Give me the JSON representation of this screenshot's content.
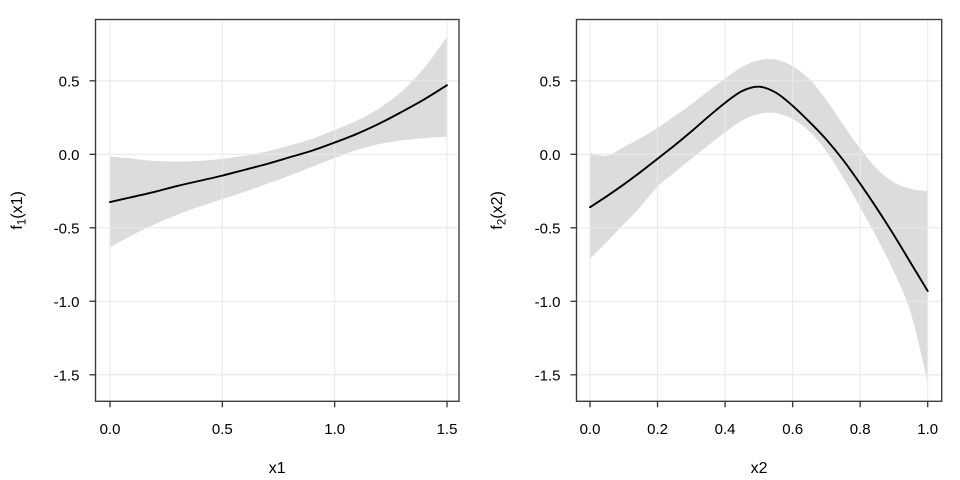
{
  "page": {
    "background": "#ffffff"
  },
  "chart_data": [
    {
      "type": "line",
      "panel": "left",
      "title": "",
      "xlabel": "x1",
      "ylabel": {
        "base": "f",
        "sub": "1",
        "args": "(x1)"
      },
      "xticks": [
        0.0,
        0.5,
        1.0,
        1.5
      ],
      "xtick_labels": [
        "0.0",
        "0.5",
        "1.0",
        "1.5"
      ],
      "yticks": [
        0.5,
        0.0,
        -0.5,
        -1.0,
        -1.5
      ],
      "ytick_labels": [
        "0.5",
        "0.0",
        "-0.5",
        "-1.0",
        "-1.5"
      ],
      "xlim": [
        -0.07,
        1.55
      ],
      "ylim": [
        -1.68,
        0.92
      ],
      "grid": true,
      "legend_position": "none",
      "series": [
        {
          "name": "smooth-estimate",
          "x": [
            0.0,
            0.1,
            0.2,
            0.3,
            0.4,
            0.5,
            0.6,
            0.7,
            0.8,
            0.9,
            1.0,
            1.1,
            1.2,
            1.3,
            1.4,
            1.5
          ],
          "y": [
            -0.325,
            -0.29,
            -0.255,
            -0.215,
            -0.18,
            -0.145,
            -0.105,
            -0.065,
            -0.02,
            0.025,
            0.08,
            0.14,
            0.21,
            0.29,
            0.375,
            0.47
          ]
        }
      ],
      "band": {
        "name": "confidence-interval",
        "x": [
          0.0,
          0.1,
          0.2,
          0.3,
          0.4,
          0.5,
          0.6,
          0.7,
          0.8,
          0.9,
          1.0,
          1.1,
          1.2,
          1.3,
          1.4,
          1.5
        ],
        "upper": [
          -0.015,
          -0.03,
          -0.045,
          -0.05,
          -0.045,
          -0.03,
          -0.01,
          0.02,
          0.06,
          0.105,
          0.165,
          0.23,
          0.315,
          0.43,
          0.59,
          0.8
        ],
        "lower": [
          -0.63,
          -0.55,
          -0.475,
          -0.41,
          -0.355,
          -0.305,
          -0.255,
          -0.2,
          -0.145,
          -0.085,
          -0.025,
          0.03,
          0.07,
          0.095,
          0.11,
          0.12
        ]
      },
      "colors": {
        "line": "#000000",
        "band": "#dcdcdc",
        "grid": "#e9e9e9",
        "border": "#3f3f3f",
        "tick": "#333333",
        "text": "#000000"
      }
    },
    {
      "type": "line",
      "panel": "right",
      "title": "",
      "xlabel": "x2",
      "ylabel": {
        "base": "f",
        "sub": "2",
        "args": "(x2)"
      },
      "xticks": [
        0.0,
        0.2,
        0.4,
        0.6,
        0.8,
        1.0
      ],
      "xtick_labels": [
        "0.0",
        "0.2",
        "0.4",
        "0.6",
        "0.8",
        "1.0"
      ],
      "yticks": [
        0.5,
        0.0,
        -0.5,
        -1.0,
        -1.5
      ],
      "ytick_labels": [
        "0.5",
        "0.0",
        "-0.5",
        "-1.0",
        "-1.5"
      ],
      "xlim": [
        -0.04,
        1.04
      ],
      "ylim": [
        -1.68,
        0.92
      ],
      "grid": true,
      "legend_position": "none",
      "series": [
        {
          "name": "smooth-estimate",
          "x": [
            0.0,
            0.05,
            0.1,
            0.15,
            0.2,
            0.25,
            0.3,
            0.35,
            0.4,
            0.45,
            0.5,
            0.55,
            0.6,
            0.65,
            0.7,
            0.75,
            0.8,
            0.85,
            0.9,
            0.95,
            1.0
          ],
          "y": [
            -0.36,
            -0.285,
            -0.205,
            -0.12,
            -0.03,
            0.06,
            0.155,
            0.255,
            0.35,
            0.43,
            0.46,
            0.42,
            0.33,
            0.22,
            0.1,
            -0.04,
            -0.2,
            -0.37,
            -0.55,
            -0.74,
            -0.93
          ]
        }
      ],
      "band": {
        "name": "confidence-interval",
        "x": [
          0.0,
          0.05,
          0.1,
          0.15,
          0.2,
          0.25,
          0.3,
          0.35,
          0.4,
          0.45,
          0.5,
          0.55,
          0.6,
          0.65,
          0.7,
          0.75,
          0.8,
          0.85,
          0.9,
          0.95,
          1.0
        ],
        "upper": [
          0.01,
          -0.01,
          0.05,
          0.11,
          0.18,
          0.26,
          0.34,
          0.43,
          0.515,
          0.595,
          0.64,
          0.645,
          0.6,
          0.51,
          0.37,
          0.2,
          0.04,
          -0.1,
          -0.19,
          -0.235,
          -0.25
        ],
        "lower": [
          -0.71,
          -0.595,
          -0.475,
          -0.355,
          -0.22,
          -0.125,
          -0.03,
          0.06,
          0.15,
          0.23,
          0.275,
          0.28,
          0.24,
          0.155,
          0.02,
          -0.16,
          -0.36,
          -0.57,
          -0.8,
          -1.08,
          -1.55
        ]
      },
      "colors": {
        "line": "#000000",
        "band": "#dcdcdc",
        "grid": "#e9e9e9",
        "border": "#3f3f3f",
        "tick": "#333333",
        "text": "#000000"
      }
    }
  ]
}
